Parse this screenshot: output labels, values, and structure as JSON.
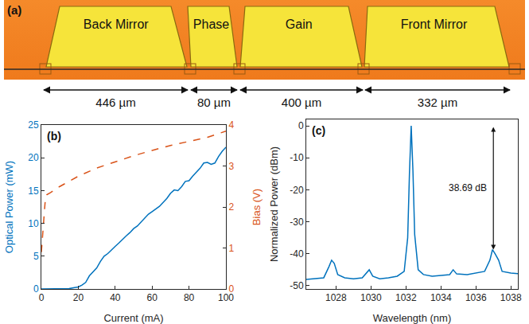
{
  "diagram": {
    "label": "(a)",
    "sections": [
      {
        "name": "Back Mirror",
        "length": "446 µm"
      },
      {
        "name": "Phase",
        "length": "80 µm"
      },
      {
        "name": "Gain",
        "length": "400 µm"
      },
      {
        "name": "Front Mirror",
        "length": "332 µm"
      }
    ]
  },
  "chart_data": [
    {
      "type": "line",
      "annotations": [
        {
          "text": "(b)"
        }
      ],
      "x_label": "Current (mA)",
      "y_label": "Optical Power (mW)",
      "y2_label": "Bias (V)",
      "xlim": [
        0,
        100
      ],
      "xticks": [
        0,
        20,
        40,
        60,
        80,
        100
      ],
      "ylim": [
        0,
        25
      ],
      "yticks": [
        0,
        5,
        10,
        15,
        20,
        25
      ],
      "y2lim": [
        0,
        4
      ],
      "y2ticks": [
        0,
        1,
        2,
        3,
        4
      ],
      "grid": false,
      "series": [
        {
          "color": "#0072BD",
          "line_style": "solid",
          "x": [
            0,
            10,
            15,
            18,
            20,
            22,
            24,
            26,
            28,
            30,
            32,
            34,
            36,
            38,
            40,
            42,
            44,
            46,
            48,
            50,
            52,
            54,
            56,
            58,
            60,
            62,
            64,
            66,
            68,
            70,
            72,
            74,
            76,
            78,
            80,
            82,
            84,
            86,
            88,
            90,
            92,
            94,
            96,
            98,
            100
          ],
          "values": [
            0,
            0,
            0.05,
            0.2,
            0.3,
            0.6,
            1.0,
            2.0,
            2.6,
            3.2,
            4.2,
            5.0,
            5.4,
            6.0,
            6.5,
            7.0,
            7.6,
            8.1,
            8.6,
            9.2,
            9.6,
            10.2,
            10.8,
            11.4,
            11.8,
            12.2,
            12.6,
            13.2,
            13.8,
            14.6,
            15.1,
            15.0,
            15.6,
            16.4,
            16.5,
            17.2,
            17.8,
            18.4,
            19.2,
            19.3,
            19.0,
            19.2,
            20.2,
            21.0,
            21.6
          ]
        },
        {
          "color": "#D95319",
          "line_style": "dashed",
          "axis": "y2",
          "x": [
            0,
            1,
            2,
            3,
            5,
            10,
            20,
            30,
            40,
            50,
            60,
            70,
            80,
            90,
            100
          ],
          "values": [
            0.9,
            1.6,
            2.1,
            2.3,
            2.35,
            2.5,
            2.75,
            2.95,
            3.1,
            3.25,
            3.38,
            3.5,
            3.6,
            3.7,
            3.85
          ]
        }
      ]
    },
    {
      "type": "line",
      "annotations": [
        {
          "text": "(c)"
        },
        {
          "text": "38.69 dB",
          "x": 1037,
          "y": [
            0,
            -38.69
          ]
        }
      ],
      "x_label": "Wavelength (nm)",
      "y_label": "Normalized Power (dBm)",
      "xlim": [
        1026.3,
        1038.4
      ],
      "xticks": [
        1028,
        1030,
        1032,
        1034,
        1036,
        1038
      ],
      "ylim": [
        -51,
        2
      ],
      "yticks": [
        -50,
        -40,
        -30,
        -20,
        -10,
        0
      ],
      "grid": false,
      "series": [
        {
          "color": "#0072BD",
          "line_style": "solid",
          "x": [
            1026.3,
            1026.8,
            1027.3,
            1027.6,
            1027.75,
            1027.9,
            1028.1,
            1028.5,
            1029,
            1029.5,
            1029.9,
            1030.1,
            1030.5,
            1031,
            1031.5,
            1031.9,
            1032.1,
            1032.2,
            1032.3,
            1032.4,
            1032.5,
            1032.7,
            1033,
            1033.5,
            1034,
            1034.5,
            1034.7,
            1034.9,
            1035.5,
            1036,
            1036.5,
            1036.8,
            1036.95,
            1037.1,
            1037.3,
            1037.5,
            1038,
            1038.4
          ],
          "values": [
            -48,
            -47.8,
            -47.5,
            -44,
            -42,
            -43,
            -46.5,
            -47.5,
            -47.8,
            -47.5,
            -45,
            -47,
            -47.8,
            -47.5,
            -47,
            -45.5,
            -35,
            -15,
            0,
            -14,
            -34,
            -45,
            -46.5,
            -47,
            -46.8,
            -46.5,
            -45,
            -46.3,
            -46.5,
            -46,
            -45.5,
            -42,
            -38.69,
            -40,
            -42,
            -45.5,
            -46,
            -46.2
          ]
        }
      ]
    }
  ]
}
